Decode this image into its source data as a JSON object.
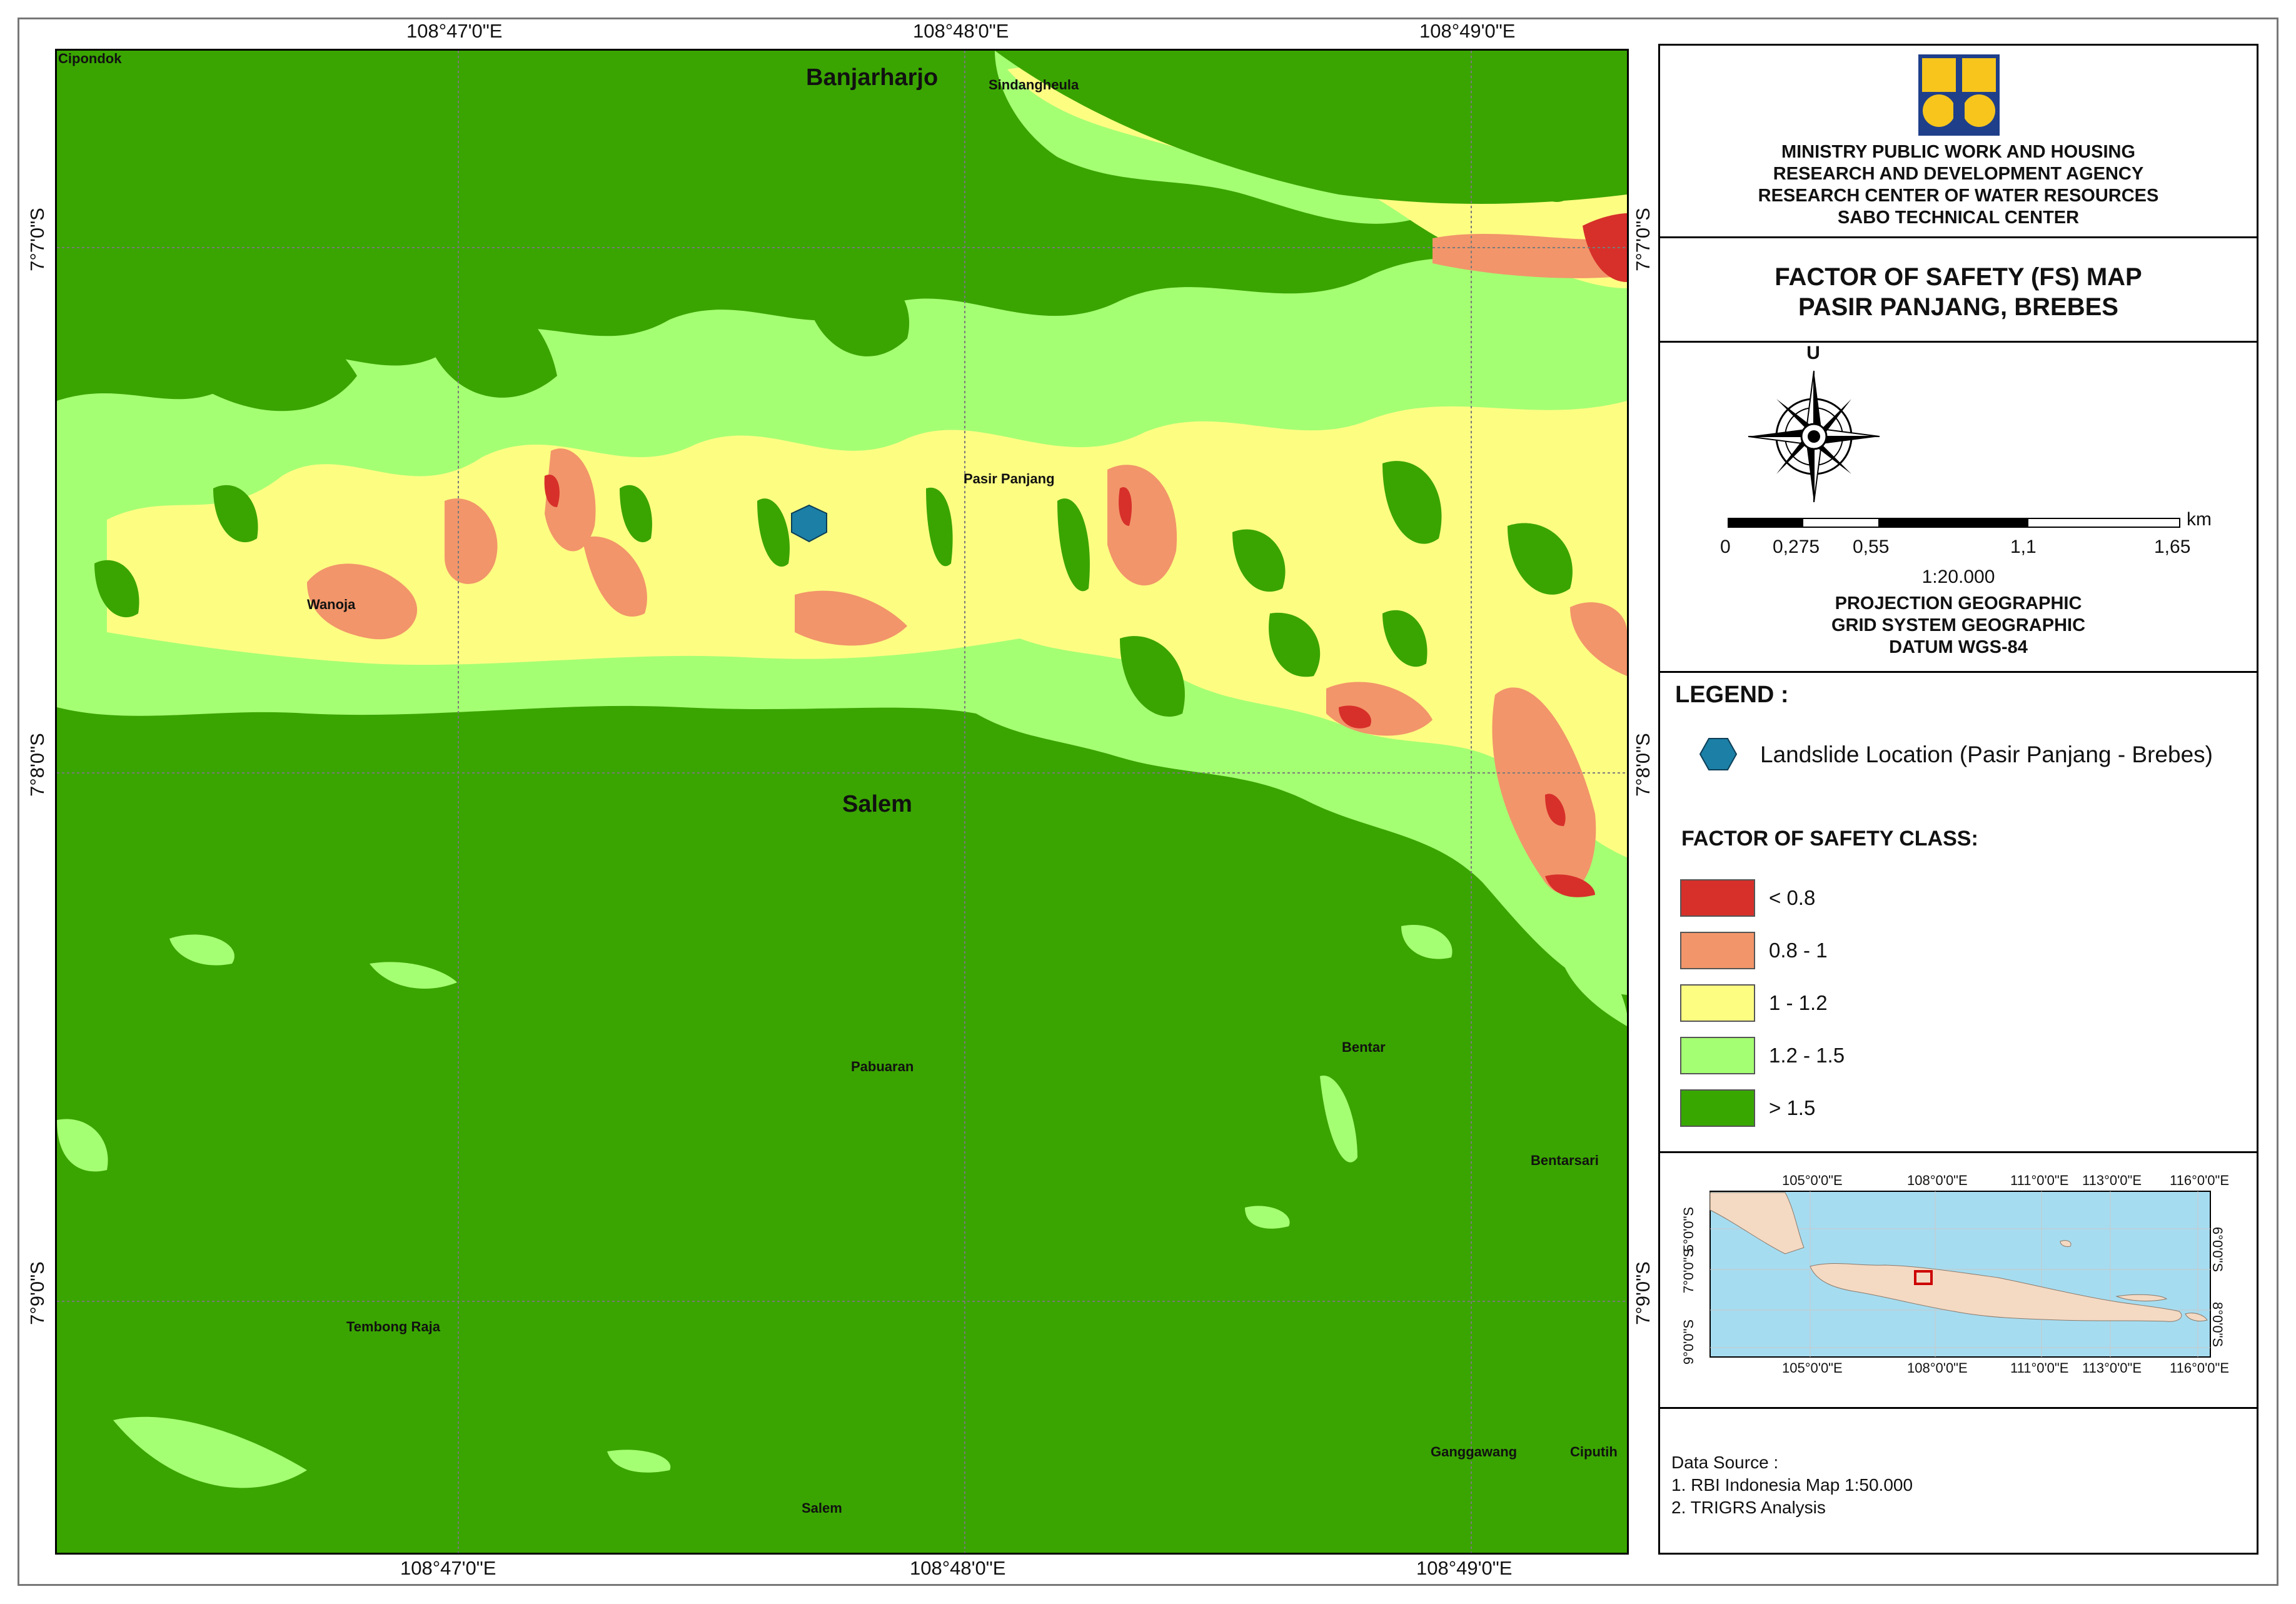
{
  "coords": {
    "top": [
      "108°47'0\"E",
      "108°48'0\"E",
      "108°49'0\"E"
    ],
    "bottom": [
      "108°47'0\"E",
      "108°48'0\"E",
      "108°49'0\"E"
    ],
    "left": [
      "7°7'0\"S",
      "7°8'0\"S",
      "7°9'0\"S"
    ],
    "right": [
      "7°7'0\"S",
      "7°8'0\"S",
      "7°9'0\"S"
    ]
  },
  "places": {
    "cipondok": "Cipondok",
    "banjarharjo": "Banjarharjo",
    "sindangheula": "Sindangheula",
    "pasir_panjang": "Pasir Panjang",
    "wanoja": "Wanoja",
    "salem_big": "Salem",
    "pabuaran": "Pabuaran",
    "bentar": "Bentar",
    "bentarsari": "Bentarsari",
    "tembong_raja": "Tembong Raja",
    "ganggawang": "Ganggawang",
    "ciputih": "Ciputih",
    "salem_small": "Salem"
  },
  "institution": {
    "line1": "MINISTRY PUBLIC WORK AND HOUSING",
    "line2": "RESEARCH AND DEVELOPMENT AGENCY",
    "line3": "RESEARCH CENTER OF WATER RESOURCES",
    "line4": "SABO TECHNICAL CENTER"
  },
  "map_title": {
    "line1": "FACTOR OF SAFETY (FS) MAP",
    "line2": "PASIR PANJANG, BREBES"
  },
  "north_label": "U",
  "scale": {
    "unit": "km",
    "ticks": [
      "0",
      "0,275",
      "0,55",
      "1,1",
      "1,65"
    ],
    "ratio": "1:20.000"
  },
  "projection": {
    "line1": "PROJECTION GEOGRAPHIC",
    "line2": "GRID SYSTEM GEOGRAPHIC",
    "line3": "DATUM WGS-84"
  },
  "legend": {
    "heading": "LEGEND :",
    "landslide": "Landslide Location (Pasir Panjang - Brebes)",
    "fs_heading": "FACTOR OF SAFETY CLASS:",
    "classes": [
      {
        "label": "< 0.8",
        "color": "#d7302a"
      },
      {
        "label": "0.8 - 1",
        "color": "#f2956a"
      },
      {
        "label": "1 - 1.2",
        "color": "#fdfd82"
      },
      {
        "label": "1.2 - 1.5",
        "color": "#a5ff73"
      },
      {
        "label": "> 1.5",
        "color": "#38a800"
      }
    ]
  },
  "inset": {
    "top_labels": [
      "105°0'0\"E",
      "108°0'0\"E",
      "111°0'0\"E",
      "113°0'0\"E",
      "116°0'0\"E"
    ],
    "bottom_labels": [
      "105°0'0\"E",
      "108°0'0\"E",
      "111°0'0\"E",
      "113°0'0\"E",
      "116°0'0\"E"
    ],
    "left_labels": [
      "5°0'0\"S",
      "7°0'0\"S",
      "9°0'0\"S"
    ],
    "right_labels": [
      "6°0'0\"S",
      "8°0'0\"S"
    ],
    "sea_color": "#a6dcf0",
    "land_color": "#f4d9c3"
  },
  "data_source": {
    "heading": "Data Source :",
    "item1": "1. RBI Indonesia Map 1:50.000",
    "item2": "2. TRIGRS Analysis"
  },
  "colors": {
    "marker": "#1b7fa6",
    "frame": "#000000"
  }
}
